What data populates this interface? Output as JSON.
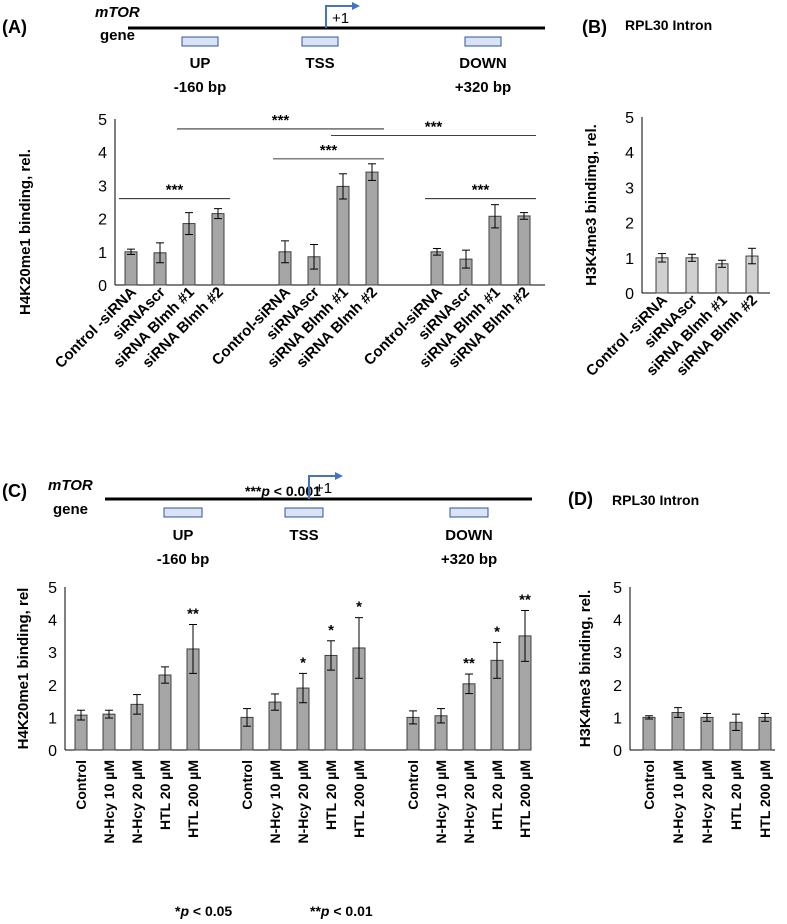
{
  "panels": {
    "A": {
      "label": "(A)",
      "gene_line1": "mTOR",
      "gene_line2": "gene",
      "tss_mark": "+1",
      "regions": [
        {
          "name": "UP",
          "sub": "-160 bp"
        },
        {
          "name": "TSS",
          "sub": ""
        },
        {
          "name": "DOWN",
          "sub": "+320 bp"
        }
      ],
      "significance_note": "***p < 0.001"
    },
    "B": {
      "label": "(B)",
      "title": "RPL30 Intron"
    },
    "C": {
      "label": "(C)",
      "gene_line1": "mTOR",
      "gene_line2": "gene",
      "tss_mark": "+1",
      "regions": [
        {
          "name": "UP",
          "sub": "-160 bp"
        },
        {
          "name": "TSS",
          "sub": ""
        },
        {
          "name": "DOWN",
          "sub": "+320 bp"
        }
      ],
      "significance_notes": [
        "*p < 0.05",
        "**p < 0.01"
      ]
    },
    "D": {
      "label": "(D)",
      "title": "RPL30 Intron"
    }
  },
  "colors": {
    "bar_fill": "#a6a6a6",
    "bar_fill_light": "#d0d0d0",
    "bar_stroke": "#404040",
    "region_box": "#dae3f3",
    "region_box_stroke": "#2f5597",
    "tss_arrow": "#4472c4"
  },
  "chart_data": [
    {
      "id": "A",
      "type": "bar",
      "title": "",
      "ylabel": "H4K20me1 binding, rel.",
      "ylim": [
        0,
        5
      ],
      "yticks": [
        0,
        1,
        2,
        3,
        4,
        5
      ],
      "groups": [
        "UP",
        "TSS",
        "DOWN"
      ],
      "categories": [
        "Control -siRNA",
        "siRNAscr",
        "siRNA Blmh #1",
        "siRNA Blmh #2"
      ],
      "category_labels_per_group": [
        [
          "Control -siRNA",
          "siRNAscr",
          "siRNA Blmh #1",
          "siRNA Blmh #2"
        ],
        [
          "Control-siRNA",
          "siRNAscr",
          "siRNA Blmh #1",
          "siRNA Blmh #2"
        ],
        [
          "Control-siRNA",
          "siRNAscr",
          "siRNA Blmh #1",
          "siRNA Blmh #2"
        ]
      ],
      "values": [
        [
          1.0,
          0.97,
          1.85,
          2.15
        ],
        [
          1.0,
          0.85,
          2.97,
          3.4
        ],
        [
          1.0,
          0.78,
          2.07,
          2.08
        ]
      ],
      "errors": [
        [
          0.08,
          0.3,
          0.33,
          0.15
        ],
        [
          0.33,
          0.37,
          0.38,
          0.25
        ],
        [
          0.1,
          0.27,
          0.35,
          0.1
        ]
      ],
      "brackets": [
        {
          "label": "***",
          "from": [
            0,
            0
          ],
          "to": [
            0,
            3
          ],
          "y": 2.6
        },
        {
          "label": "***",
          "from": [
            1,
            0
          ],
          "to": [
            1,
            3
          ],
          "y": 3.8
        },
        {
          "label": "***",
          "from": [
            0,
            2
          ],
          "to": [
            1,
            3
          ],
          "y": 4.7
        },
        {
          "label": "***",
          "from": [
            1,
            2
          ],
          "to": [
            2,
            3
          ],
          "y": 4.5
        },
        {
          "label": "***",
          "from": [
            2,
            0
          ],
          "to": [
            2,
            3
          ],
          "y": 2.6
        }
      ]
    },
    {
      "id": "B",
      "type": "bar",
      "title": "RPL30 Intron",
      "ylabel": "H3K4me3 bindimg, rel.",
      "ylim": [
        0,
        5
      ],
      "yticks": [
        0,
        1,
        2,
        3,
        4,
        5
      ],
      "categories": [
        "Control -siRNA",
        "siRNAscr",
        "siRNA Blmh #1",
        "siRNA Blmh #2"
      ],
      "values": [
        1.0,
        1.0,
        0.83,
        1.05
      ],
      "errors": [
        0.12,
        0.1,
        0.1,
        0.22
      ]
    },
    {
      "id": "C",
      "type": "bar",
      "title": "",
      "ylabel": "H4K20me1 binding, rel",
      "ylim": [
        0,
        5
      ],
      "yticks": [
        0,
        1,
        2,
        3,
        4,
        5
      ],
      "groups": [
        "UP",
        "TSS",
        "DOWN"
      ],
      "categories": [
        "Control",
        "N-Hcy 10 µM",
        "N-Hcy 20 µM",
        "HTL 20 µM",
        "HTL 200 µM"
      ],
      "values": [
        [
          1.07,
          1.1,
          1.4,
          2.3,
          3.1
        ],
        [
          1.0,
          1.47,
          1.9,
          2.9,
          3.13
        ],
        [
          1.0,
          1.05,
          2.03,
          2.75,
          3.5
        ]
      ],
      "errors": [
        [
          0.15,
          0.12,
          0.3,
          0.25,
          0.75
        ],
        [
          0.27,
          0.25,
          0.45,
          0.45,
          0.93
        ],
        [
          0.2,
          0.22,
          0.3,
          0.55,
          0.78
        ]
      ],
      "stars": [
        [
          "",
          "",
          "",
          "",
          "**"
        ],
        [
          "",
          "",
          "*",
          "*",
          "*"
        ],
        [
          "",
          "",
          "**",
          "*",
          "**"
        ]
      ]
    },
    {
      "id": "D",
      "type": "bar",
      "title": "RPL30 Intron",
      "ylabel": "H3K4me3 binding, rel.",
      "ylim": [
        0,
        5
      ],
      "yticks": [
        0,
        1,
        2,
        3,
        4,
        5
      ],
      "categories": [
        "Control",
        "N-Hcy 10 µM",
        "N-Hcy 20 µM",
        "HTL 20 µM",
        "HTL 200 µM"
      ],
      "values": [
        1.0,
        1.15,
        1.0,
        0.85,
        1.0
      ],
      "errors": [
        0.05,
        0.15,
        0.12,
        0.25,
        0.12
      ]
    }
  ]
}
